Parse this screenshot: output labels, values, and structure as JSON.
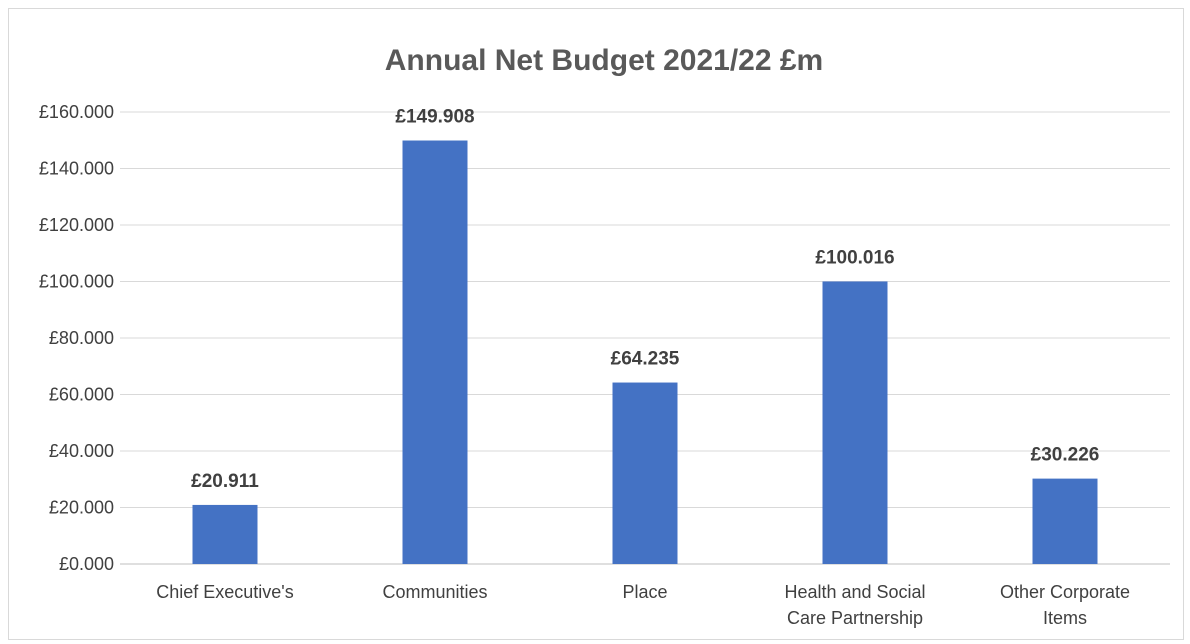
{
  "chart_data": {
    "type": "bar",
    "title": "Annual Net Budget 2021/22 £m",
    "xlabel": "",
    "ylabel": "",
    "categories": [
      [
        "Chief Executive's"
      ],
      [
        "Communities"
      ],
      [
        "Place"
      ],
      [
        "Health and Social",
        "Care Partnership"
      ],
      [
        "Other Corporate",
        "Items"
      ]
    ],
    "values": [
      20.911,
      149.908,
      64.235,
      100.016,
      30.226
    ],
    "data_labels": [
      "£20.911",
      "£149.908",
      "£64.235",
      "£100.016",
      "£30.226"
    ],
    "ylim": [
      0,
      160
    ],
    "yticks": [
      0,
      20,
      40,
      60,
      80,
      100,
      120,
      140,
      160
    ],
    "ytick_labels": [
      "£0.000",
      "£20.000",
      "£40.000",
      "£60.000",
      "£80.000",
      "£100.000",
      "£120.000",
      "£140.000",
      "£160.000"
    ],
    "grid": true,
    "legend": "none",
    "bar_color": "#4472C4"
  }
}
